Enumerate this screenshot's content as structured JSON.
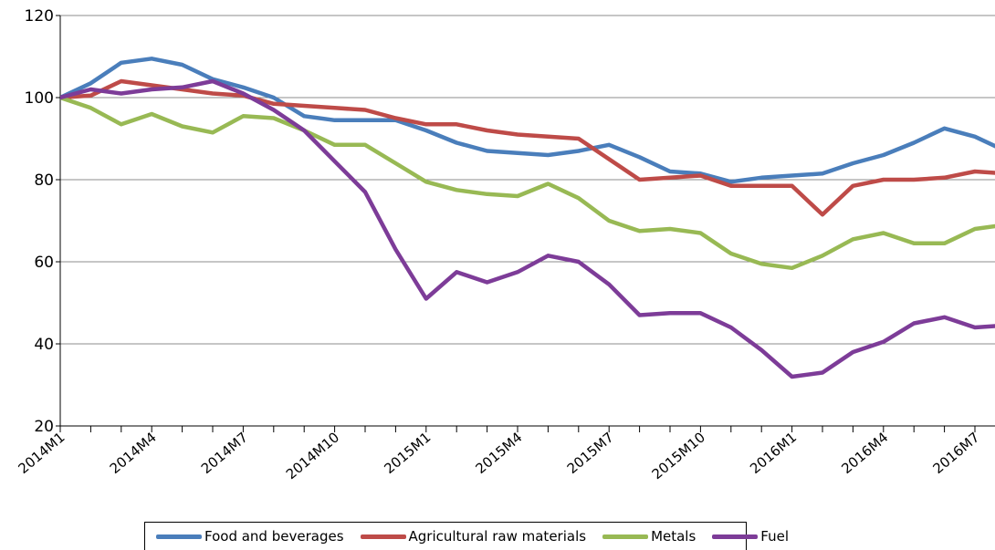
{
  "chart_data": {
    "type": "line",
    "ylim": [
      20,
      120
    ],
    "yticks": [
      20,
      40,
      60,
      80,
      100,
      120
    ],
    "x_tick_labels": [
      "2014M1",
      "2014M4",
      "2014M7",
      "2014M10",
      "2015M1",
      "2015M4",
      "2015M7",
      "2015M10",
      "2016M1",
      "2016M4",
      "2016M7"
    ],
    "x": [
      "2014M1",
      "2014M2",
      "2014M3",
      "2014M4",
      "2014M5",
      "2014M6",
      "2014M7",
      "2014M8",
      "2014M9",
      "2014M10",
      "2014M11",
      "2014M12",
      "2015M1",
      "2015M2",
      "2015M3",
      "2015M4",
      "2015M5",
      "2015M6",
      "2015M7",
      "2015M8",
      "2015M9",
      "2015M10",
      "2015M11",
      "2015M12",
      "2016M1",
      "2016M2",
      "2016M3",
      "2016M4",
      "2016M5",
      "2016M6",
      "2016M7",
      "2016M8"
    ],
    "grid": true,
    "legend_position": "bottom",
    "series": [
      {
        "name": "Food and beverages",
        "color": "#4a7ebb",
        "values": [
          100,
          103.5,
          108.5,
          109.5,
          108,
          104.5,
          102.5,
          100,
          95.5,
          94.5,
          94.5,
          94.5,
          92,
          89,
          87,
          86.5,
          86,
          87,
          88.5,
          85.5,
          82,
          81.5,
          79.5,
          80.5,
          81,
          81.5,
          84,
          86,
          89,
          92.5,
          90.5,
          87
        ]
      },
      {
        "name": "Agricultural raw materials",
        "color": "#be4b48",
        "values": [
          100,
          100.5,
          104,
          103,
          102,
          101,
          100.5,
          98.5,
          98,
          97.5,
          97,
          95,
          93.5,
          93.5,
          92,
          91,
          90.5,
          90,
          85,
          80,
          80.5,
          81,
          78.5,
          78.5,
          78.5,
          71.5,
          78.5,
          80,
          80,
          80.5,
          82,
          81.5
        ]
      },
      {
        "name": "Metals",
        "color": "#98b954",
        "values": [
          100,
          97.5,
          93.5,
          96,
          93,
          91.5,
          95.5,
          95,
          92,
          88.5,
          88.5,
          84,
          79.5,
          77.5,
          76.5,
          76,
          79,
          75.5,
          70,
          67.5,
          68,
          67,
          62,
          59.5,
          58.5,
          61.5,
          65.5,
          67,
          64.5,
          64.5,
          68,
          69
        ]
      },
      {
        "name": "Fuel",
        "color": "#7d3c98",
        "values": [
          100,
          102,
          101,
          102,
          102.5,
          104,
          101,
          97,
          92,
          84.5,
          77,
          63,
          51,
          57.5,
          55,
          57.5,
          61.5,
          60,
          54.5,
          47,
          47.5,
          47.5,
          44,
          38.5,
          32,
          33,
          38,
          40.5,
          45,
          46.5,
          44,
          44.5
        ]
      }
    ]
  }
}
